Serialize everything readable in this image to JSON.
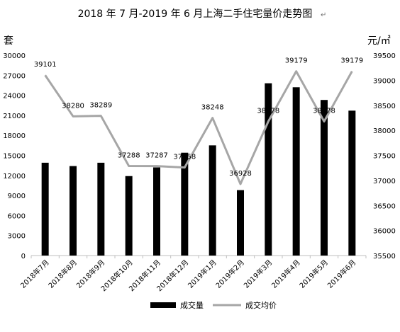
{
  "chart_data": {
    "type": "bar",
    "title": "2018 年 7 月-2019 年 6 月上海二手住宅量价走势图",
    "title_trailing_mark": "↵",
    "left_axis_label": "套",
    "right_axis_label": "元/㎡",
    "categories": [
      "2018年7月",
      "2018年8月",
      "2018年9月",
      "2018年10月",
      "2018年11月",
      "2018年12月",
      "2019年1月",
      "2019年2月",
      "2019年3月",
      "2019年4月",
      "2019年5月",
      "2019年6月"
    ],
    "left_ylim": [
      0,
      30000
    ],
    "left_ticks": [
      "0",
      "3000",
      "6000",
      "9000",
      "12000",
      "15000",
      "18000",
      "21000",
      "24000",
      "27000",
      "30000"
    ],
    "right_ylim": [
      35500,
      39500
    ],
    "right_ticks": [
      "35500",
      "36000",
      "36500",
      "37000",
      "37500",
      "38000",
      "38500",
      "39000",
      "39500"
    ],
    "series": [
      {
        "name": "成交量",
        "type": "bar",
        "axis": "left",
        "color": "#000000",
        "values": [
          13900,
          13400,
          13900,
          11900,
          13200,
          15400,
          16500,
          9800,
          25800,
          25200,
          23300,
          21700
        ]
      },
      {
        "name": "成交均价",
        "type": "line",
        "axis": "right",
        "color": "#a6a6a6",
        "values": [
          39101,
          38280,
          38289,
          37288,
          37287,
          37258,
          38248,
          36928,
          38178,
          39179,
          38178,
          39179
        ],
        "labels": [
          "39101",
          "38280",
          "38289",
          "37288",
          "37287",
          "37258",
          "38248",
          "36928",
          "38178",
          "39179",
          "38178",
          "39179"
        ]
      }
    ],
    "legend_position": "bottom",
    "grid": false
  }
}
